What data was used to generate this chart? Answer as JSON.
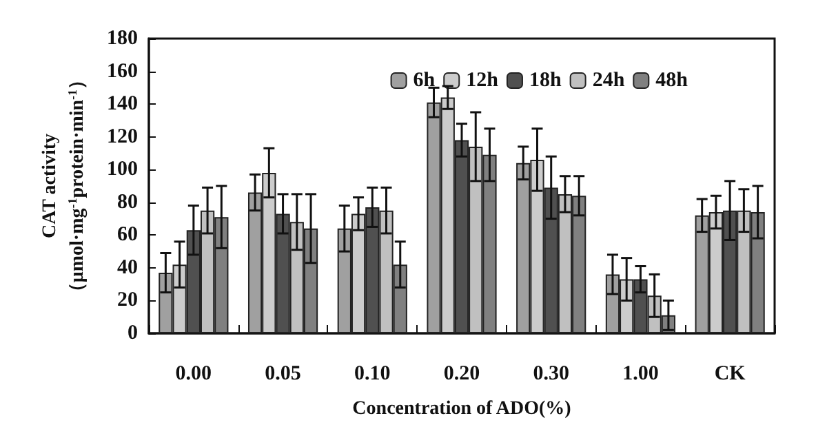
{
  "chart_data": {
    "type": "bar",
    "xlabel": "Concentration of ADO(%)",
    "ylabel": "CAT activity\n（μmol·mg$^{-1}$protein·min$^{-1}$）",
    "categories": [
      "0.00",
      "0.05",
      "0.10",
      "0.20",
      "0.30",
      "1.00",
      "CK"
    ],
    "series": [
      {
        "name": "6h",
        "color": "#a0a0a0",
        "values": [
          37,
          86,
          64,
          141,
          104,
          36,
          72
        ],
        "errors": [
          12,
          11,
          14,
          9,
          10,
          12,
          10
        ]
      },
      {
        "name": "12h",
        "color": "#cccccc",
        "values": [
          42,
          98,
          73,
          144,
          106,
          33,
          74
        ],
        "errors": [
          14,
          15,
          10,
          7,
          19,
          13,
          10
        ]
      },
      {
        "name": "18h",
        "color": "#505050",
        "values": [
          63,
          73,
          77,
          118,
          89,
          33,
          75
        ],
        "errors": [
          15,
          12,
          12,
          10,
          19,
          8,
          18
        ]
      },
      {
        "name": "24h",
        "color": "#c0c0c0",
        "values": [
          75,
          68,
          75,
          114,
          85,
          23,
          75
        ],
        "errors": [
          14,
          17,
          14,
          21,
          11,
          13,
          13
        ]
      },
      {
        "name": "48h",
        "color": "#808080",
        "values": [
          71,
          64,
          42,
          109,
          84,
          11,
          74
        ],
        "errors": [
          19,
          21,
          14,
          16,
          12,
          9,
          16
        ]
      }
    ],
    "ylim": [
      0,
      180
    ],
    "yticks": [
      0,
      20,
      40,
      60,
      80,
      100,
      120,
      140,
      160,
      180
    ],
    "grid": false,
    "legend": "top right"
  }
}
